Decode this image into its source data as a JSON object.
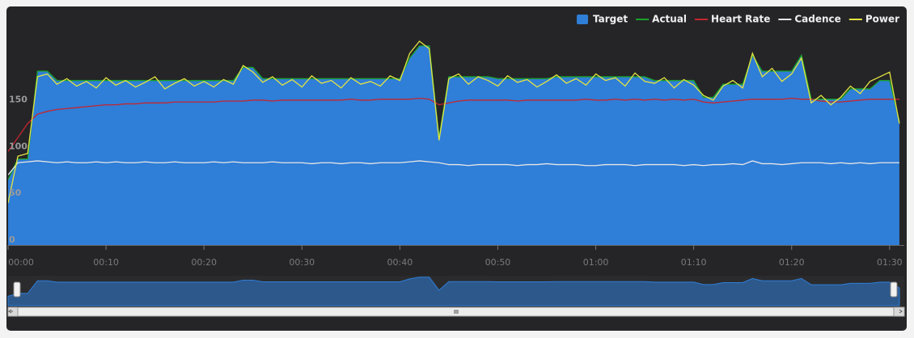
{
  "chart_data": {
    "type": "line",
    "legend": "top-right",
    "navigator": true,
    "x": [
      0,
      1,
      2,
      3,
      4,
      5,
      6,
      7,
      8,
      9,
      10,
      11,
      12,
      13,
      14,
      15,
      16,
      17,
      18,
      19,
      20,
      21,
      22,
      23,
      24,
      25,
      26,
      27,
      28,
      29,
      30,
      31,
      32,
      33,
      34,
      35,
      36,
      37,
      38,
      39,
      40,
      41,
      42,
      43,
      44,
      45,
      46,
      47,
      48,
      49,
      50,
      51,
      52,
      53,
      54,
      55,
      56,
      57,
      58,
      59,
      60,
      61,
      62,
      63,
      64,
      65,
      66,
      67,
      68,
      69,
      70,
      71,
      72,
      73,
      74,
      75,
      76,
      77,
      78,
      79,
      80,
      81,
      82,
      83,
      84,
      85,
      86,
      87,
      88,
      89,
      90,
      91
    ],
    "xlim": [
      0,
      91.5
    ],
    "xticks": [
      {
        "value": 0,
        "label": "00:00"
      },
      {
        "value": 10,
        "label": "00:10"
      },
      {
        "value": 20,
        "label": "00:20"
      },
      {
        "value": 30,
        "label": "00:30"
      },
      {
        "value": 40,
        "label": "00:40"
      },
      {
        "value": 50,
        "label": "00:50"
      },
      {
        "value": 60,
        "label": "01:00"
      },
      {
        "value": 70,
        "label": "01:10"
      },
      {
        "value": 80,
        "label": "01:20"
      },
      {
        "value": 90,
        "label": "01:30"
      }
    ],
    "ylim": [
      0,
      250
    ],
    "yticks": [
      0,
      50,
      100,
      150
    ],
    "series": [
      {
        "name": "Target",
        "type": "area",
        "color": "#2f7ed8",
        "values": [
          70,
          92,
          92,
          186,
          186,
          176,
          176,
          176,
          176,
          176,
          176,
          176,
          176,
          176,
          176,
          176,
          176,
          176,
          176,
          176,
          176,
          176,
          176,
          176,
          190,
          190,
          178,
          178,
          178,
          178,
          178,
          178,
          178,
          178,
          178,
          178,
          178,
          178,
          178,
          178,
          178,
          200,
          213,
          213,
          115,
          180,
          180,
          180,
          180,
          180,
          178,
          178,
          178,
          178,
          178,
          178,
          180,
          180,
          180,
          180,
          180,
          180,
          180,
          180,
          180,
          180,
          176,
          176,
          176,
          176,
          176,
          158,
          158,
          172,
          172,
          172,
          203,
          186,
          186,
          186,
          186,
          203,
          156,
          156,
          156,
          156,
          167,
          167,
          167,
          176,
          176,
          132
        ]
      },
      {
        "name": "Actual",
        "type": "line",
        "color": "#1aa22a",
        "values": [
          70,
          92,
          92,
          186,
          186,
          176,
          176,
          176,
          176,
          176,
          176,
          176,
          176,
          176,
          176,
          176,
          176,
          176,
          176,
          176,
          176,
          176,
          176,
          176,
          190,
          190,
          178,
          178,
          178,
          178,
          178,
          178,
          178,
          178,
          178,
          178,
          178,
          178,
          178,
          178,
          178,
          200,
          213,
          213,
          115,
          180,
          180,
          180,
          180,
          180,
          178,
          178,
          178,
          178,
          178,
          178,
          180,
          180,
          180,
          180,
          180,
          180,
          180,
          180,
          180,
          180,
          176,
          176,
          176,
          176,
          176,
          158,
          158,
          172,
          172,
          172,
          203,
          186,
          186,
          186,
          186,
          203,
          156,
          156,
          156,
          156,
          167,
          167,
          167,
          176,
          176,
          132
        ]
      },
      {
        "name": "Heart Rate",
        "type": "line",
        "color": "#c4262e",
        "values": [
          100,
          115,
          130,
          140,
          143,
          145,
          146,
          147,
          148,
          149,
          150,
          150,
          151,
          151,
          152,
          152,
          152,
          153,
          153,
          153,
          153,
          153,
          154,
          154,
          154,
          155,
          155,
          154,
          155,
          155,
          155,
          155,
          155,
          155,
          155,
          156,
          155,
          155,
          156,
          156,
          156,
          156,
          157,
          156,
          150,
          152,
          154,
          155,
          155,
          155,
          155,
          155,
          154,
          155,
          155,
          155,
          155,
          155,
          155,
          156,
          155,
          155,
          156,
          155,
          156,
          155,
          156,
          155,
          156,
          155,
          156,
          153,
          152,
          153,
          154,
          155,
          156,
          156,
          156,
          156,
          157,
          156,
          156,
          154,
          153,
          153,
          154,
          155,
          156,
          156,
          156,
          156
        ]
      },
      {
        "name": "Cadence",
        "type": "line",
        "color": "#e6e6e6",
        "values": [
          75,
          88,
          89,
          90,
          89,
          88,
          89,
          88,
          88,
          89,
          88,
          89,
          88,
          88,
          89,
          88,
          88,
          89,
          88,
          88,
          88,
          89,
          88,
          89,
          88,
          88,
          88,
          89,
          88,
          88,
          88,
          87,
          88,
          88,
          87,
          88,
          88,
          87,
          88,
          88,
          88,
          89,
          90,
          89,
          88,
          86,
          86,
          85,
          86,
          86,
          86,
          86,
          85,
          86,
          86,
          87,
          86,
          86,
          86,
          85,
          85,
          86,
          86,
          86,
          85,
          86,
          86,
          86,
          86,
          85,
          86,
          85,
          86,
          86,
          87,
          86,
          90,
          87,
          87,
          86,
          87,
          88,
          88,
          88,
          87,
          88,
          87,
          88,
          87,
          88,
          88,
          88
        ]
      },
      {
        "name": "Power",
        "type": "line",
        "color": "#e4e442",
        "values": [
          45,
          95,
          98,
          180,
          183,
          172,
          178,
          170,
          175,
          168,
          179,
          171,
          176,
          169,
          174,
          180,
          167,
          173,
          178,
          170,
          175,
          169,
          177,
          172,
          192,
          185,
          174,
          180,
          171,
          177,
          169,
          181,
          173,
          176,
          168,
          179,
          172,
          175,
          170,
          181,
          176,
          205,
          218,
          210,
          112,
          178,
          183,
          172,
          180,
          176,
          170,
          181,
          174,
          177,
          169,
          175,
          182,
          173,
          178,
          171,
          183,
          176,
          179,
          170,
          184,
          175,
          173,
          179,
          168,
          177,
          171,
          160,
          155,
          170,
          176,
          168,
          205,
          180,
          189,
          175,
          183,
          200,
          152,
          160,
          150,
          158,
          170,
          162,
          175,
          180,
          185,
          130
        ]
      }
    ]
  }
}
